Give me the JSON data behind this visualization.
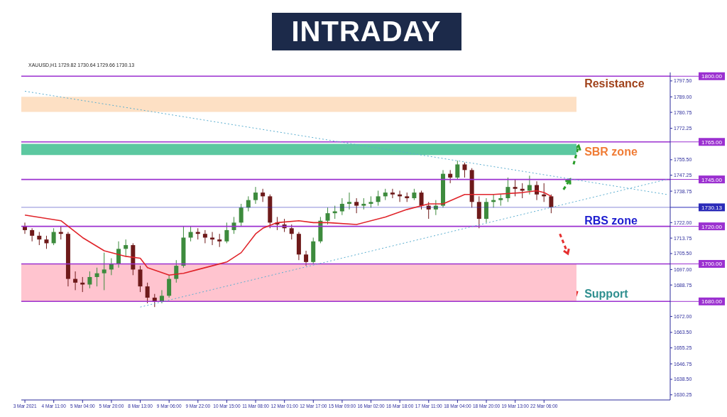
{
  "chart_data": {
    "type": "candlestick",
    "title": "INTRADAY",
    "subtitle": "XAUUSD,H1  1729.82 1730.64 1729.66 1730.13",
    "categories": [
      "3 Mar 2021",
      null,
      null,
      null,
      "4 Mar 11:00",
      null,
      null,
      null,
      "5 Mar 04:00",
      null,
      null,
      null,
      "5 Mar 20:00",
      null,
      null,
      null,
      "8 Mar 13:00",
      null,
      null,
      null,
      "9 Mar 06:00",
      null,
      null,
      null,
      "9 Mar 22:00",
      null,
      null,
      null,
      "10 Mar 15:00",
      null,
      null,
      null,
      "11 Mar 08:00",
      null,
      null,
      null,
      "12 Mar 01:00",
      null,
      null,
      null,
      "12 Mar 17:00",
      null,
      null,
      null,
      "15 Mar 09:00",
      null,
      null,
      null,
      "16 Mar 02:00",
      null,
      null,
      null,
      "16 Mar 18:00",
      null,
      null,
      null,
      "17 Mar 11:00",
      null,
      null,
      null,
      "18 Mar 04:00",
      null,
      null,
      null,
      "18 Mar 20:00",
      null,
      null,
      null,
      "19 Mar 13:00",
      null,
      null,
      null,
      "22 Mar 06:00",
      null,
      null,
      null,
      null,
      null,
      null,
      null,
      null,
      null,
      null,
      null,
      null,
      null,
      null,
      null,
      null,
      null
    ],
    "ohlc": [
      [
        1720,
        1722,
        1716,
        1718
      ],
      [
        1718,
        1719,
        1712,
        1715
      ],
      [
        1715,
        1717,
        1710,
        1713
      ],
      [
        1713,
        1715,
        1708,
        1711
      ],
      [
        1711,
        1719,
        1710,
        1717
      ],
      [
        1717,
        1720,
        1713,
        1716
      ],
      [
        1716,
        1717,
        1688,
        1692
      ],
      [
        1692,
        1696,
        1686,
        1690
      ],
      [
        1690,
        1693,
        1685,
        1689
      ],
      [
        1689,
        1696,
        1687,
        1693
      ],
      [
        1693,
        1698,
        1688,
        1695
      ],
      [
        1695,
        1706,
        1686,
        1697
      ],
      [
        1697,
        1703,
        1694,
        1700
      ],
      [
        1700,
        1712,
        1698,
        1708
      ],
      [
        1708,
        1713,
        1704,
        1710
      ],
      [
        1710,
        1711,
        1694,
        1697
      ],
      [
        1697,
        1699,
        1685,
        1688
      ],
      [
        1688,
        1690,
        1679,
        1682
      ],
      [
        1682,
        1684,
        1677,
        1680
      ],
      [
        1680,
        1686,
        1679,
        1683
      ],
      [
        1683,
        1694,
        1682,
        1692
      ],
      [
        1692,
        1702,
        1690,
        1699
      ],
      [
        1699,
        1720,
        1698,
        1714
      ],
      [
        1714,
        1720,
        1712,
        1717
      ],
      [
        1717,
        1719,
        1713,
        1716
      ],
      [
        1716,
        1718,
        1711,
        1714
      ],
      [
        1714,
        1717,
        1710,
        1713
      ],
      [
        1713,
        1716,
        1709,
        1712
      ],
      [
        1712,
        1722,
        1711,
        1718
      ],
      [
        1718,
        1725,
        1716,
        1722
      ],
      [
        1722,
        1732,
        1720,
        1730
      ],
      [
        1730,
        1736,
        1728,
        1734
      ],
      [
        1734,
        1741,
        1732,
        1738
      ],
      [
        1738,
        1740,
        1733,
        1736
      ],
      [
        1736,
        1737,
        1719,
        1722
      ],
      [
        1722,
        1725,
        1718,
        1721
      ],
      [
        1721,
        1724,
        1717,
        1719
      ],
      [
        1719,
        1721,
        1713,
        1716
      ],
      [
        1716,
        1717,
        1702,
        1705
      ],
      [
        1705,
        1707,
        1699,
        1701
      ],
      [
        1701,
        1714,
        1700,
        1712
      ],
      [
        1712,
        1725,
        1711,
        1723
      ],
      [
        1723,
        1730,
        1721,
        1727
      ],
      [
        1727,
        1731,
        1724,
        1728
      ],
      [
        1728,
        1735,
        1726,
        1732
      ],
      [
        1732,
        1738,
        1729,
        1733
      ],
      [
        1733,
        1735,
        1727,
        1731
      ],
      [
        1731,
        1735,
        1729,
        1732
      ],
      [
        1732,
        1736,
        1730,
        1733
      ],
      [
        1733,
        1739,
        1731,
        1736
      ],
      [
        1736,
        1740,
        1734,
        1738
      ],
      [
        1738,
        1740,
        1735,
        1737
      ],
      [
        1737,
        1739,
        1733,
        1736
      ],
      [
        1736,
        1738,
        1733,
        1735
      ],
      [
        1735,
        1740,
        1734,
        1738
      ],
      [
        1738,
        1739,
        1729,
        1731
      ],
      [
        1731,
        1733,
        1724,
        1729
      ],
      [
        1729,
        1734,
        1726,
        1731
      ],
      [
        1731,
        1750,
        1730,
        1748
      ],
      [
        1748,
        1750,
        1743,
        1746
      ],
      [
        1746,
        1755,
        1745,
        1753
      ],
      [
        1753,
        1754,
        1746,
        1750
      ],
      [
        1750,
        1751,
        1730,
        1733
      ],
      [
        1733,
        1736,
        1719,
        1724
      ],
      [
        1724,
        1735,
        1722,
        1733
      ],
      [
        1733,
        1737,
        1730,
        1734
      ],
      [
        1734,
        1737,
        1731,
        1735
      ],
      [
        1735,
        1746,
        1733,
        1741
      ],
      [
        1741,
        1745,
        1736,
        1740
      ],
      [
        1740,
        1743,
        1735,
        1739
      ],
      [
        1739,
        1747,
        1737,
        1742
      ],
      [
        1742,
        1744,
        1734,
        1737
      ],
      [
        1737,
        1743,
        1733,
        1736
      ],
      [
        1736,
        1737,
        1727,
        1730.13
      ],
      null,
      null,
      null,
      null,
      null,
      null,
      null,
      null,
      null,
      null,
      null,
      null,
      null,
      null,
      null,
      null
    ],
    "colors": [
      "#6e1a1a",
      "#6e1a1a",
      "#6e1a1a",
      "#6e1a1a",
      "#3d8b3d",
      "#6e1a1a",
      "#6e1a1a",
      "#6e1a1a",
      "#6e1a1a",
      "#3d8b3d",
      "#3d8b3d",
      "#3d8b3d",
      "#3d8b3d",
      "#3d8b3d",
      "#3d8b3d",
      "#6e1a1a",
      "#6e1a1a",
      "#6e1a1a",
      "#6e1a1a",
      "#3d8b3d",
      "#3d8b3d",
      "#3d8b3d",
      "#3d8b3d",
      "#3d8b3d",
      "#6e1a1a",
      "#6e1a1a",
      "#6e1a1a",
      "#6e1a1a",
      "#3d8b3d",
      "#3d8b3d",
      "#3d8b3d",
      "#3d8b3d",
      "#3d8b3d",
      "#6e1a1a",
      "#6e1a1a",
      "#6e1a1a",
      "#6e1a1a",
      "#6e1a1a",
      "#6e1a1a",
      "#6e1a1a",
      "#3d8b3d",
      "#3d8b3d",
      "#3d8b3d",
      "#3d8b3d",
      "#3d8b3d",
      "#3d8b3d",
      "#6e1a1a",
      "#3d8b3d",
      "#3d8b3d",
      "#3d8b3d",
      "#3d8b3d",
      "#6e1a1a",
      "#6e1a1a",
      "#6e1a1a",
      "#3d8b3d",
      "#6e1a1a",
      "#6e1a1a",
      "#3d8b3d",
      "#3d8b3d",
      "#6e1a1a",
      "#3d8b3d",
      "#6e1a1a",
      "#6e1a1a",
      "#6e1a1a",
      "#3d8b3d",
      "#3d8b3d",
      "#3d8b3d",
      "#3d8b3d",
      "#6e1a1a",
      "#6e1a1a",
      "#3d8b3d",
      "#6e1a1a",
      "#6e1a1a",
      "#6e1a1a",
      null,
      null,
      null,
      null,
      null,
      null,
      null,
      null,
      null,
      null,
      null,
      null,
      null,
      null,
      null,
      null
    ],
    "series": [
      {
        "type": "line",
        "color": "#e0242a",
        "line_style": "solid",
        "values": [
          1726,
          null,
          null,
          null,
          null,
          1723,
          null,
          null,
          1714,
          null,
          null,
          1707,
          null,
          null,
          1704,
          null,
          1703,
          1698,
          null,
          null,
          1694,
          null,
          1695,
          null,
          1697,
          null,
          1699,
          null,
          1701,
          null,
          1706,
          null,
          1716,
          1719,
          null,
          1722,
          null,
          null,
          1723,
          null,
          1722,
          null,
          1722,
          null,
          null,
          null,
          1721,
          null,
          null,
          null,
          1725,
          null,
          null,
          1729,
          null,
          null,
          1732,
          null,
          1732,
          null,
          null,
          1737,
          null,
          null,
          null,
          1737,
          null,
          null,
          null,
          1738,
          null,
          1739,
          1738,
          1736,
          null,
          null,
          null,
          null,
          null,
          null,
          null,
          null,
          null,
          null,
          null,
          null,
          null,
          null,
          null,
          null
        ]
      },
      {
        "type": "line",
        "color": "#5aaed0",
        "line_style": "dotted",
        "values": [
          1792,
          null,
          null,
          null,
          null,
          null,
          null,
          null,
          null,
          null,
          null,
          null,
          null,
          null,
          null,
          null,
          null,
          null,
          null,
          null,
          null,
          null,
          null,
          null,
          null,
          null,
          null,
          null,
          null,
          null,
          null,
          null,
          null,
          null,
          null,
          null,
          null,
          null,
          null,
          null,
          null,
          null,
          null,
          null,
          null,
          null,
          null,
          null,
          null,
          null,
          null,
          null,
          null,
          null,
          null,
          null,
          null,
          null,
          null,
          null,
          null,
          null,
          null,
          null,
          null,
          null,
          null,
          null,
          null,
          null,
          null,
          null,
          null,
          null,
          null,
          null,
          null,
          null,
          null,
          null,
          null,
          null,
          null,
          null,
          null,
          null,
          null,
          null,
          null,
          1737
        ]
      },
      {
        "type": "line",
        "color": "#5aaed0",
        "line_style": "dotted",
        "values": [
          null,
          null,
          null,
          null,
          null,
          null,
          null,
          null,
          null,
          null,
          null,
          null,
          null,
          null,
          null,
          null,
          1677,
          null,
          null,
          null,
          null,
          null,
          null,
          null,
          null,
          null,
          null,
          null,
          null,
          null,
          null,
          null,
          null,
          null,
          null,
          null,
          null,
          null,
          null,
          null,
          null,
          null,
          null,
          null,
          null,
          null,
          null,
          null,
          null,
          null,
          null,
          null,
          null,
          null,
          null,
          null,
          null,
          null,
          null,
          null,
          null,
          null,
          null,
          null,
          null,
          null,
          null,
          null,
          null,
          null,
          null,
          null,
          null,
          null,
          null,
          null,
          null,
          null,
          null,
          null,
          null,
          null,
          null,
          null,
          null,
          null,
          null,
          null,
          null,
          1745
        ]
      }
    ],
    "ylim": [
      1627.5,
      1802
    ],
    "yticks": [
      {
        "value": 1630.25,
        "label": "1630.25"
      },
      {
        "value": 1638.5,
        "label": "1638.50"
      },
      {
        "value": 1646.75,
        "label": "1646.75"
      },
      {
        "value": 1655.25,
        "label": "1655.25"
      },
      {
        "value": 1663.5,
        "label": "1663.50"
      },
      {
        "value": 1672,
        "label": "1672.00"
      },
      {
        "value": 1688.75,
        "label": "1688.75"
      },
      {
        "value": 1697,
        "label": "1697.00"
      },
      {
        "value": 1705.5,
        "label": "1705.50"
      },
      {
        "value": 1713.75,
        "label": "1713.75"
      },
      {
        "value": 1722,
        "label": "1722.00"
      },
      {
        "value": 1738.75,
        "label": "1738.75"
      },
      {
        "value": 1747.25,
        "label": "1747.25"
      },
      {
        "value": 1755.5,
        "label": "1755.50"
      },
      {
        "value": 1772.25,
        "label": "1772.25"
      },
      {
        "value": 1780.75,
        "label": "1780.75"
      },
      {
        "value": 1789,
        "label": "1789.00"
      },
      {
        "value": 1797.5,
        "label": "1797.50"
      }
    ],
    "ref_lines": [
      {
        "axis": "y",
        "value": 1800,
        "label": "1800.00",
        "color": "#9b30d0"
      },
      {
        "axis": "y",
        "value": 1765,
        "label": "1765.00",
        "color": "#9b30d0"
      },
      {
        "axis": "y",
        "value": 1745,
        "label": "1745.00",
        "color": "#9b30d0"
      },
      {
        "axis": "y",
        "value": 1730.13,
        "label": "1730.13",
        "color": "#2a2ab8"
      },
      {
        "axis": "y",
        "value": 1720,
        "label": "1720.00",
        "color": "#9b30d0"
      },
      {
        "axis": "y",
        "value": 1700,
        "label": "1700.00",
        "color": "#9b30d0"
      },
      {
        "axis": "y",
        "value": 1680,
        "label": "1680.00",
        "color": "#9b30d0"
      }
    ],
    "bands": [
      {
        "axis": "y",
        "from": 1781,
        "to": 1789,
        "color": "#fde0c4"
      },
      {
        "axis": "y",
        "from": 1758,
        "to": 1764,
        "color": "#5cc8a0"
      },
      {
        "axis": "y",
        "from": 1680,
        "to": 1700,
        "color": "#ffc4cf"
      }
    ],
    "annotations": [
      "Resistance",
      "SBR zone",
      "RBS zone",
      "Support"
    ]
  }
}
